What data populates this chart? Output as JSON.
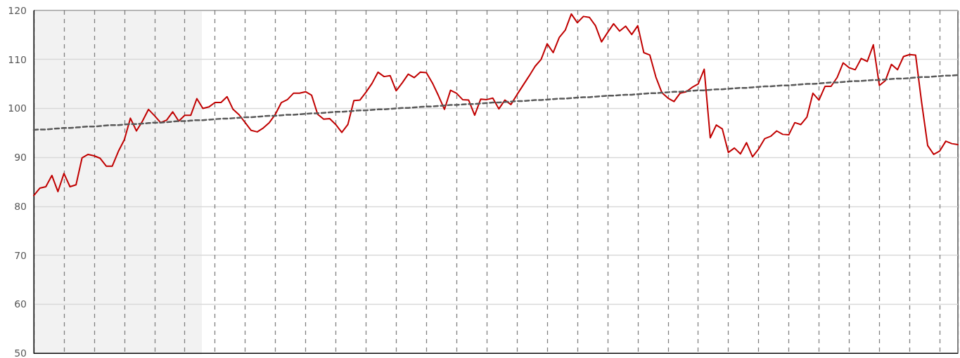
{
  "chart_data": {
    "type": "line",
    "marker": "none",
    "grid": true,
    "tick_labels": "y",
    "categories": [
      null,
      null,
      null,
      null,
      null,
      null,
      null,
      null,
      null,
      null,
      null,
      null,
      null,
      null,
      null,
      null,
      null,
      null,
      null,
      null,
      null,
      null,
      null,
      null,
      null,
      null,
      null,
      null,
      null,
      null,
      null,
      null,
      null,
      null,
      null,
      null,
      null,
      null,
      null,
      null,
      null,
      null,
      null,
      null,
      null,
      null,
      null,
      null,
      null,
      null,
      null,
      null,
      null,
      null,
      null,
      null,
      null,
      null,
      null,
      null,
      null,
      null,
      null,
      null,
      null,
      null,
      null,
      null,
      null,
      null,
      null,
      null,
      null,
      null,
      null,
      null,
      null,
      null,
      null,
      null,
      null,
      null,
      null,
      null,
      null,
      null,
      null,
      null,
      null,
      null,
      null,
      null,
      null,
      null,
      null,
      null,
      null,
      null,
      null,
      null,
      null,
      null,
      null,
      null,
      null,
      null,
      null,
      null,
      null,
      null,
      null,
      null,
      null,
      null,
      null,
      null,
      null,
      null,
      null,
      null,
      null,
      null,
      null,
      null,
      null,
      null,
      null,
      null,
      null,
      null,
      null,
      null,
      null,
      null,
      null,
      null,
      null,
      null,
      null,
      null,
      null,
      null,
      null,
      null,
      null,
      null,
      null,
      null,
      null,
      null,
      null,
      null,
      null,
      null
    ],
    "ylim": [
      50,
      120
    ],
    "yticks": [
      50,
      60,
      70,
      80,
      90,
      100,
      110,
      120
    ],
    "series": [
      {
        "color": "#c00000",
        "line_style": "solid",
        "values": [
          82.2,
          83.7,
          84.0,
          86.3,
          83.0,
          86.7,
          84.0,
          84.4,
          89.9,
          90.6,
          90.3,
          89.8,
          88.2,
          88.2,
          91.2,
          93.6,
          98.0,
          95.4,
          97.4,
          99.8,
          98.5,
          97.1,
          97.6,
          99.3,
          97.4,
          98.6,
          98.6,
          102.0,
          100.0,
          100.3,
          101.2,
          101.2,
          102.4,
          99.8,
          98.7,
          97.1,
          95.5,
          95.2,
          96.0,
          97.1,
          98.8,
          101.2,
          101.8,
          103.1,
          103.1,
          103.4,
          102.7,
          98.8,
          97.8,
          97.9,
          96.7,
          95.1,
          96.7,
          101.6,
          101.7,
          103.3,
          105.1,
          107.4,
          106.5,
          106.7,
          103.6,
          105.2,
          107.0,
          106.3,
          107.4,
          107.3,
          105.2,
          102.6,
          99.8,
          103.7,
          103.1,
          101.8,
          101.7,
          98.6,
          101.9,
          101.8,
          102.1,
          99.9,
          101.7,
          100.8,
          102.8,
          104.7,
          106.6,
          108.6,
          110.0,
          113.2,
          111.4,
          114.5,
          116.0,
          119.3,
          117.5,
          118.8,
          118.6,
          116.9,
          113.6,
          115.5,
          117.3,
          115.8,
          116.8,
          115.1,
          116.9,
          111.4,
          110.9,
          106.4,
          103.2,
          102.1,
          101.4,
          103.1,
          103.4,
          104.3,
          105.0,
          108.0,
          94.0,
          96.6,
          95.8,
          91.0,
          91.9,
          90.7,
          93.0,
          90.1,
          91.7,
          93.8,
          94.3,
          95.4,
          94.7,
          94.6,
          97.1,
          96.7,
          98.2,
          103.1,
          101.7,
          104.5,
          104.5,
          106.3,
          109.3,
          108.3,
          107.9,
          110.2,
          109.6,
          113.0,
          104.7,
          105.7,
          109.0,
          107.9,
          110.6,
          111.0,
          110.9,
          101.2,
          92.4,
          90.6,
          91.3,
          93.3,
          92.8,
          92.6
        ]
      },
      {
        "color": "#595959",
        "line_style": "dashed",
        "values": [
          95.6,
          95.7,
          95.7,
          95.8,
          95.9,
          96.0,
          96.0,
          96.1,
          96.2,
          96.3,
          96.3,
          96.4,
          96.5,
          96.6,
          96.6,
          96.7,
          96.8,
          96.8,
          96.9,
          97.0,
          97.1,
          97.1,
          97.2,
          97.3,
          97.4,
          97.4,
          97.5,
          97.6,
          97.6,
          97.7,
          97.8,
          97.9,
          97.9,
          98.0,
          98.1,
          98.2,
          98.2,
          98.3,
          98.4,
          98.5,
          98.5,
          98.6,
          98.7,
          98.7,
          98.8,
          98.9,
          99.0,
          99.0,
          99.1,
          99.2,
          99.3,
          99.3,
          99.4,
          99.5,
          99.6,
          99.6,
          99.7,
          99.8,
          99.8,
          99.9,
          100.0,
          100.1,
          100.1,
          100.2,
          100.3,
          100.4,
          100.4,
          100.5,
          100.6,
          100.7,
          100.7,
          100.8,
          100.9,
          100.9,
          101.0,
          101.1,
          101.2,
          101.2,
          101.3,
          101.4,
          101.5,
          101.5,
          101.6,
          101.7,
          101.7,
          101.8,
          101.9,
          102.0,
          102.0,
          102.1,
          102.2,
          102.3,
          102.3,
          102.4,
          102.5,
          102.6,
          102.6,
          102.7,
          102.8,
          102.8,
          102.9,
          103.0,
          103.1,
          103.1,
          103.2,
          103.3,
          103.4,
          103.4,
          103.5,
          103.6,
          103.7,
          103.7,
          103.8,
          103.9,
          103.9,
          104.0,
          104.1,
          104.2,
          104.2,
          104.3,
          104.4,
          104.5,
          104.5,
          104.6,
          104.7,
          104.7,
          104.8,
          104.9,
          105.0,
          105.0,
          105.1,
          105.2,
          105.3,
          105.3,
          105.4,
          105.5,
          105.6,
          105.6,
          105.7,
          105.8,
          105.8,
          105.9,
          106.0,
          106.1,
          106.1,
          106.2,
          106.3,
          106.4,
          106.4,
          106.5,
          106.6,
          106.7,
          106.7,
          106.8
        ]
      }
    ]
  }
}
